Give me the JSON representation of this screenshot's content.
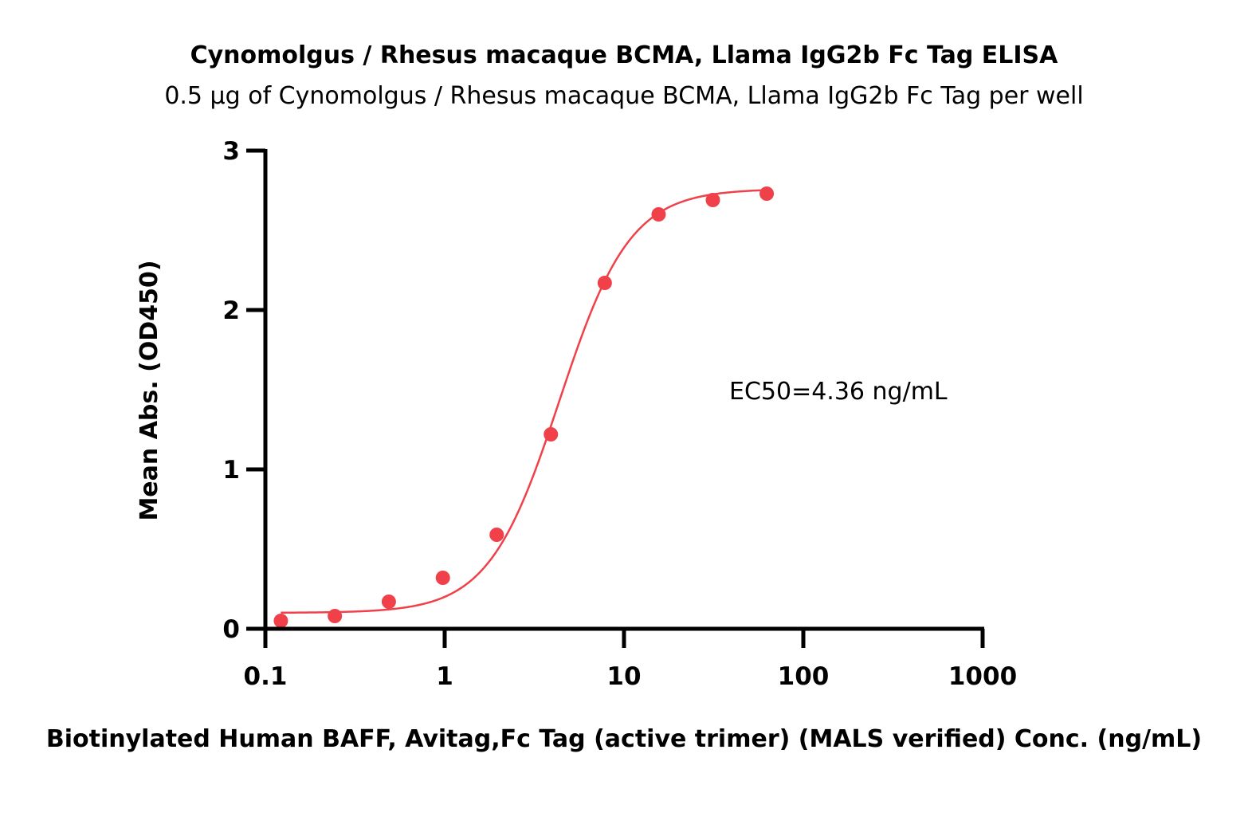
{
  "chart_data": {
    "type": "scatter",
    "title": "Cynomolgus / Rhesus macaque BCMA, Llama IgG2b Fc Tag ELISA",
    "subtitle": "0.5 μg of Cynomolgus / Rhesus macaque BCMA, Llama IgG2b Fc Tag per well",
    "xlabel": "Biotinylated Human BAFF, Avitag,Fc Tag (active trimer) (MALS verified) Conc. (ng/mL)",
    "ylabel": "Mean Abs. (OD450)",
    "x_scale": "log",
    "xlim": [
      0.1,
      1000
    ],
    "ylim": [
      0,
      3
    ],
    "x_ticks": [
      0.1,
      1,
      10,
      100,
      1000
    ],
    "x_tick_labels": [
      "0.1",
      "1",
      "10",
      "100",
      "1000"
    ],
    "y_ticks": [
      0,
      1,
      2,
      3
    ],
    "y_tick_labels": [
      "0",
      "1",
      "2",
      "3"
    ],
    "grid": false,
    "color": "#f0404a",
    "series": [
      {
        "x": [
          0.122,
          0.244,
          0.488,
          0.977,
          1.95,
          3.91,
          7.81,
          15.6,
          31.3,
          62.5
        ],
        "y": [
          0.05,
          0.08,
          0.17,
          0.32,
          0.59,
          1.22,
          2.17,
          2.6,
          2.69,
          2.73
        ]
      }
    ],
    "fit": {
      "model": "4PL",
      "bottom": 0.1,
      "top": 2.76,
      "ec50": 4.36,
      "hill": 2.2,
      "x_range": [
        0.122,
        62.5
      ]
    },
    "annotations": [
      "EC50=4.36 ng/mL"
    ]
  }
}
